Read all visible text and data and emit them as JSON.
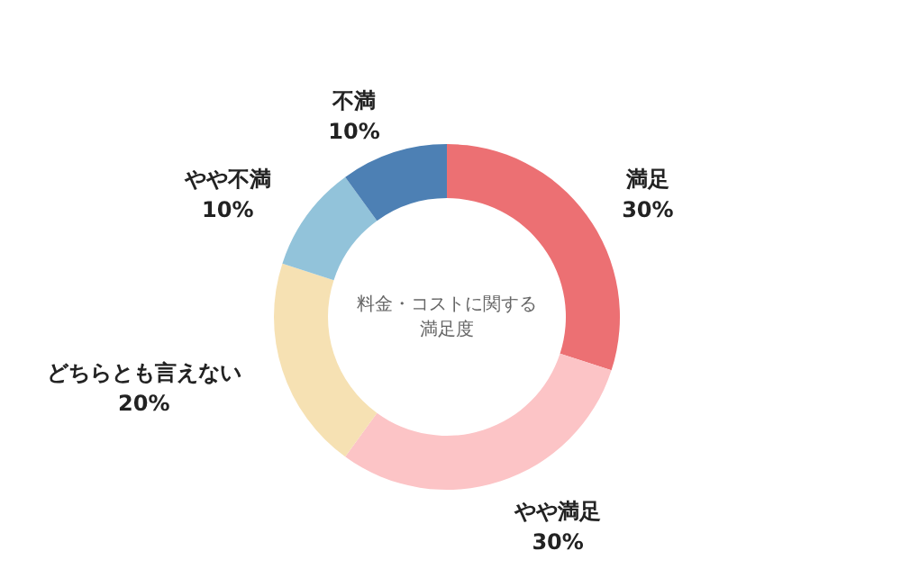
{
  "chart_data": {
    "type": "donut",
    "title": "料金・コストに関する満足度",
    "categories": [
      "満足",
      "やや満足",
      "どちらとも言えない",
      "やや不満",
      "不満"
    ],
    "values": [
      30,
      30,
      20,
      10,
      10
    ],
    "colors": [
      "#ec7073",
      "#fcc4c6",
      "#f6e1b3",
      "#92c3da",
      "#4d80b4"
    ],
    "value_labels": [
      "30%",
      "30%",
      "20%",
      "10%",
      "10%"
    ]
  }
}
